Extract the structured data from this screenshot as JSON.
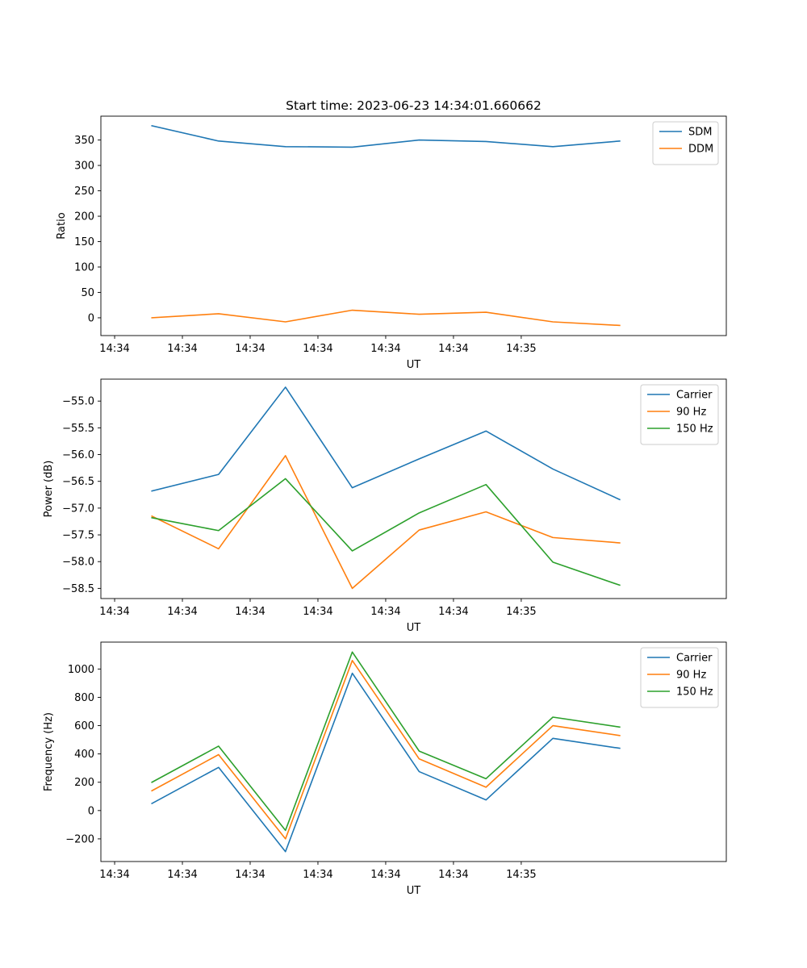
{
  "figure": {
    "title": "Start time: 2023-06-23 14:34:01.660662"
  },
  "colors": {
    "blue": "#1f77b4",
    "orange": "#ff7f0e",
    "green": "#2ca02c"
  },
  "chart_data": [
    {
      "type": "line",
      "title": "Start time: 2023-06-23 14:34:01.660662",
      "xlabel": "UT",
      "ylabel": "Ratio",
      "x_tick_labels": [
        "14:34",
        "14:34",
        "14:34",
        "14:34",
        "14:34",
        "14:34",
        "14:35"
      ],
      "xlim": [
        -0.203,
        9.026
      ],
      "x": [
        0.55,
        1.534,
        2.521,
        3.507,
        4.494,
        5.48,
        6.467,
        7.453
      ],
      "ylim": [
        -35,
        397
      ],
      "y_ticks": [
        0,
        50,
        100,
        150,
        200,
        250,
        300,
        350
      ],
      "legend_position": "top-right",
      "grid": false,
      "series": [
        {
          "name": "SDM",
          "color": "#1f77b4",
          "values": [
            378,
            348,
            337,
            336,
            350,
            347,
            337,
            348
          ]
        },
        {
          "name": "DDM",
          "color": "#ff7f0e",
          "values": [
            0,
            8,
            -8,
            15,
            7,
            11,
            -8,
            -15
          ]
        }
      ]
    },
    {
      "type": "line",
      "xlabel": "UT",
      "ylabel": "Power (dB)",
      "x_tick_labels": [
        "14:34",
        "14:34",
        "14:34",
        "14:34",
        "14:34",
        "14:34",
        "14:35"
      ],
      "xlim": [
        -0.203,
        9.026
      ],
      "x": [
        0.55,
        1.534,
        2.521,
        3.507,
        4.494,
        5.48,
        6.467,
        7.453
      ],
      "ylim": [
        -58.69,
        -54.59
      ],
      "y_ticks": [
        -58.5,
        -58.0,
        -57.5,
        -57.0,
        -56.5,
        -56.0,
        -55.5,
        -55.0
      ],
      "legend_position": "top-right",
      "grid": false,
      "series": [
        {
          "name": "Carrier",
          "color": "#1f77b4",
          "values": [
            -56.68,
            -56.37,
            -54.74,
            -56.62,
            -56.08,
            -55.56,
            -56.27,
            -56.84
          ]
        },
        {
          "name": "90 Hz",
          "color": "#ff7f0e",
          "values": [
            -57.15,
            -57.76,
            -56.02,
            -58.5,
            -57.41,
            -57.07,
            -57.55,
            -57.65
          ]
        },
        {
          "name": "150 Hz",
          "color": "#2ca02c",
          "values": [
            -57.18,
            -57.42,
            -56.45,
            -57.8,
            -57.09,
            -56.56,
            -58.01,
            -58.44
          ]
        }
      ]
    },
    {
      "type": "line",
      "xlabel": "UT",
      "ylabel": "Frequency (Hz)",
      "x_tick_labels": [
        "14:34",
        "14:34",
        "14:34",
        "14:34",
        "14:34",
        "14:34",
        "14:35"
      ],
      "xlim": [
        -0.203,
        9.026
      ],
      "x": [
        0.55,
        1.534,
        2.521,
        3.507,
        4.494,
        5.48,
        6.467,
        7.453
      ],
      "ylim": [
        -360,
        1190
      ],
      "y_ticks": [
        -200,
        0,
        200,
        400,
        600,
        800,
        1000
      ],
      "legend_position": "top-right",
      "grid": false,
      "series": [
        {
          "name": "Carrier",
          "color": "#1f77b4",
          "values": [
            50,
            305,
            -290,
            970,
            275,
            75,
            510,
            440
          ]
        },
        {
          "name": "90 Hz",
          "color": "#ff7f0e",
          "values": [
            140,
            395,
            -200,
            1060,
            365,
            165,
            600,
            530
          ]
        },
        {
          "name": "150 Hz",
          "color": "#2ca02c",
          "values": [
            200,
            455,
            -140,
            1120,
            420,
            225,
            660,
            590
          ]
        }
      ]
    }
  ]
}
